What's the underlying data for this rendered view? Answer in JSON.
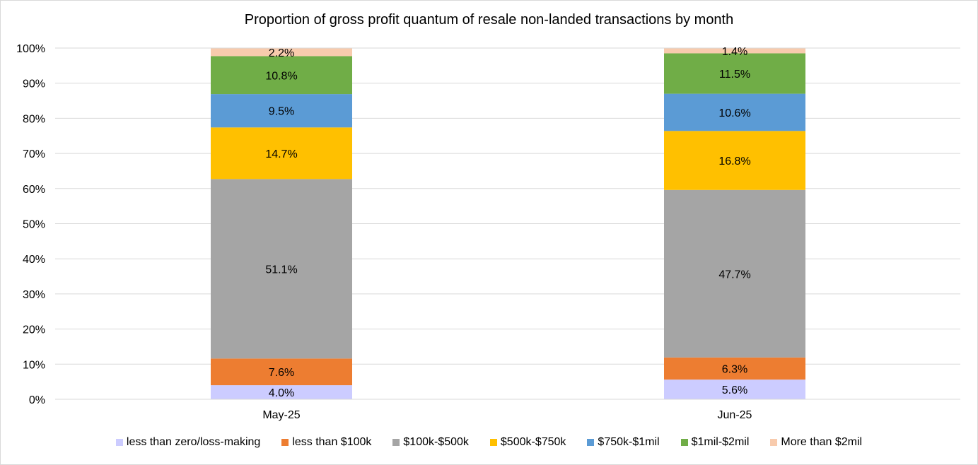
{
  "chart_data": {
    "type": "bar",
    "stacked": true,
    "title": "Proportion of gross profit quantum of resale non-landed transactions by month",
    "categories": [
      "May-25",
      "Jun-25"
    ],
    "ylim": [
      0,
      100
    ],
    "yticks": [
      "0%",
      "10%",
      "20%",
      "30%",
      "40%",
      "50%",
      "60%",
      "70%",
      "80%",
      "90%",
      "100%"
    ],
    "grid": true,
    "legend_position": "bottom",
    "series": [
      {
        "name": "less than zero/loss-making",
        "color": "#ccccff",
        "values": [
          4.0,
          5.6
        ],
        "labels": [
          "4.0%",
          "5.6%"
        ]
      },
      {
        "name": "less than $100k",
        "color": "#ed7d31",
        "values": [
          7.6,
          6.3
        ],
        "labels": [
          "7.6%",
          "6.3%"
        ]
      },
      {
        "name": "$100k-$500k",
        "color": "#a5a5a5",
        "values": [
          51.1,
          47.7
        ],
        "labels": [
          "51.1%",
          "47.7%"
        ]
      },
      {
        "name": "$500k-$750k",
        "color": "#ffc000",
        "values": [
          14.7,
          16.8
        ],
        "labels": [
          "14.7%",
          "16.8%"
        ]
      },
      {
        "name": "$750k-$1mil",
        "color": "#5b9bd5",
        "values": [
          9.5,
          10.6
        ],
        "labels": [
          "9.5%",
          "10.6%"
        ]
      },
      {
        "name": "$1mil-$2mil",
        "color": "#70ad47",
        "values": [
          10.8,
          11.5
        ],
        "labels": [
          "10.8%",
          "11.5%"
        ]
      },
      {
        "name": "More than $2mil",
        "color": "#f8cbad",
        "values": [
          2.2,
          1.4
        ],
        "labels": [
          "2.2%",
          "1.4%"
        ]
      }
    ]
  }
}
